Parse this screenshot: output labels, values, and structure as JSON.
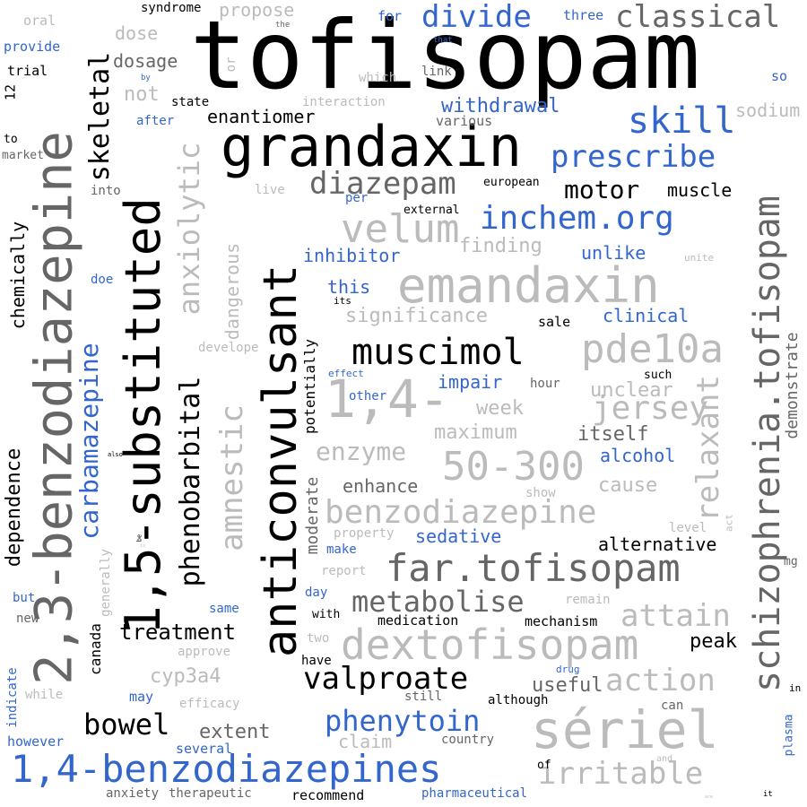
{
  "words": [
    "tofisopam",
    "grandaxin",
    "anticonvulsant",
    "1,5-substituted",
    "2,3-benzodiazepine",
    "emandaxin",
    "schizophrenia.tofisopam",
    "sériel",
    "1,4-",
    "dextofisopam",
    "far.tofisopam",
    "1,4-benzodiazepines",
    "benzodiazepine",
    "50-300",
    "muscimol",
    "pde10a",
    "inchem.org",
    "velum",
    "diazepam",
    "prescribe",
    "skill",
    "divide",
    "classical",
    "carbamazepine",
    "skeletal",
    "jersey",
    "anxiolytic",
    "relaxant",
    "amnestic",
    "phenobarbital",
    "phenytoin",
    "valproate",
    "bowel",
    "irritable",
    "attain",
    "action",
    "metabolise",
    "treatment",
    "enzyme",
    "dangerous",
    "motor",
    "enantiomer",
    "withdrawal",
    "significance",
    "finding",
    "unclear",
    "maximum",
    "week",
    "itself",
    "enhance",
    "cause",
    "cyp3a4",
    "extent",
    "claim",
    "peak",
    "useful",
    "alternative",
    "sedative",
    "impair",
    "clinical",
    "inhibitor",
    "unlike",
    "this",
    "alcohol",
    "muscle",
    "sodium",
    "dosage",
    "dose",
    "propose",
    "syndrome",
    "demonstrate",
    "dependence",
    "chemically",
    "canada",
    "potentially",
    "moderate",
    "medication",
    "mechanism",
    "recommend",
    "pharmaceutical",
    "anxiety",
    "therapeutic",
    "several",
    "however",
    "indicate",
    "trial",
    "provide",
    "oral",
    "market",
    "into",
    "not",
    "state",
    "interaction",
    "various",
    "link",
    "which",
    "for",
    "three",
    "that",
    "the",
    "or",
    "by",
    "so",
    "after",
    "12",
    "to",
    "live",
    "per",
    "external",
    "european",
    "its",
    "develope",
    "effect",
    "other",
    "hour",
    "such",
    "sale",
    "also",
    "be",
    "generally",
    "property",
    "report",
    "make",
    "level",
    "act",
    "remain",
    "show",
    "same",
    "with",
    "two",
    "approve",
    "efficacy",
    "have",
    "may",
    "while",
    "still",
    "although",
    "drug",
    "can",
    "new",
    "but",
    "day",
    "country",
    "of",
    "and",
    "in",
    "plasma",
    "mg",
    "it",
    "unite",
    "doe",
    "is",
    "are"
  ]
}
